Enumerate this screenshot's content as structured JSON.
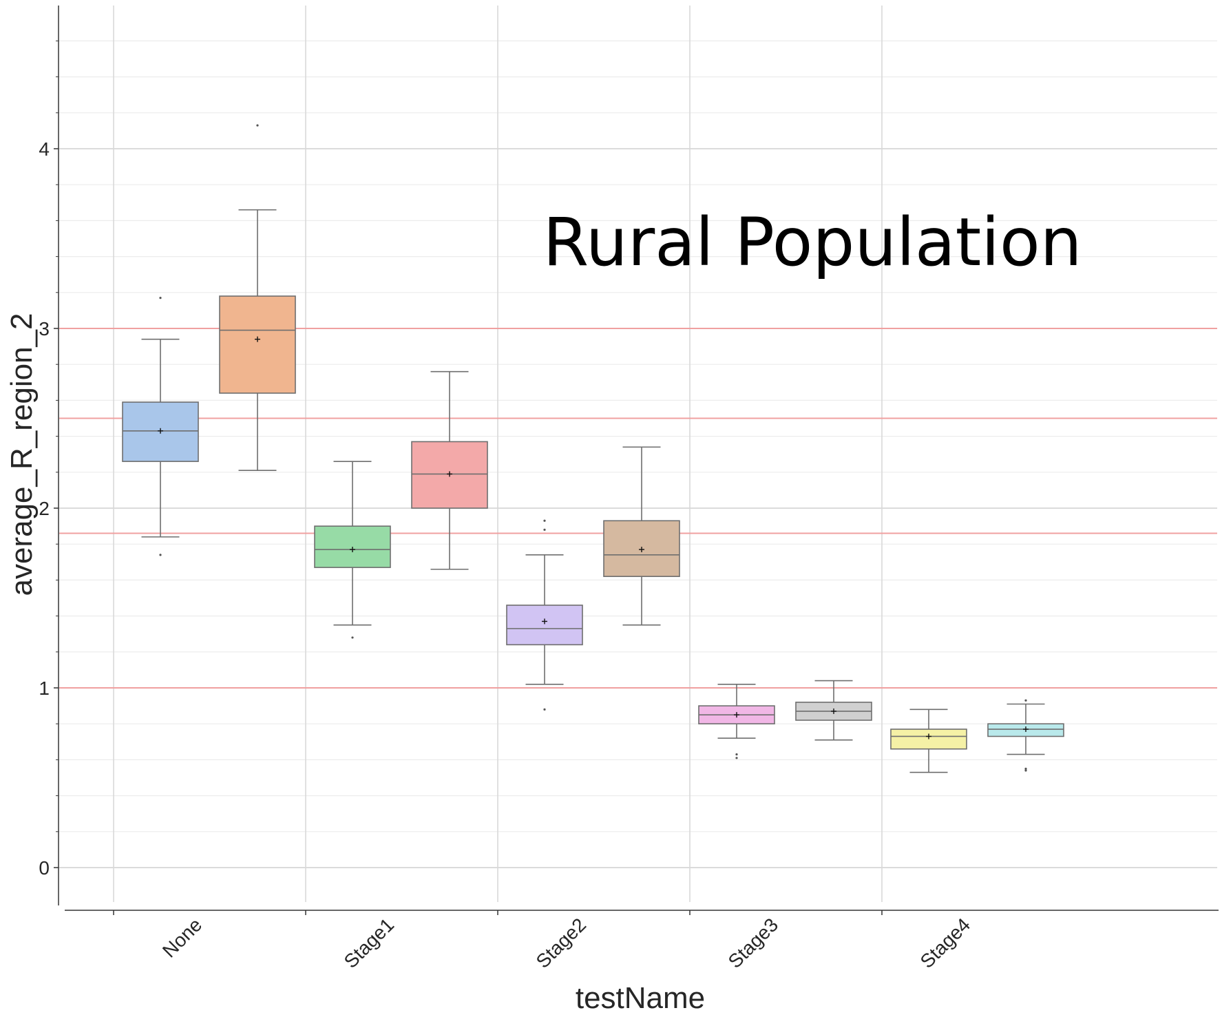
{
  "chart_data": {
    "type": "box",
    "overlay_title": "Rural Population",
    "xlabel": "testName",
    "ylabel": "average_R_region_2",
    "categories": [
      "None",
      "Stage1",
      "Stage2",
      "Stage3",
      "Stage4"
    ],
    "ylim": [
      -0.2,
      4.8
    ],
    "yticks": [
      "0",
      "1",
      "2",
      "3",
      "4"
    ],
    "grid": true,
    "reference_lines": [
      3.0,
      2.5,
      1.86,
      1.0
    ],
    "reference_line_color": "#f0a0a0",
    "boxes": [
      {
        "category": "None",
        "slot": 0,
        "color": "#a9c6ea",
        "whisker_low": 1.84,
        "q1": 2.26,
        "median": 2.43,
        "q3": 2.59,
        "whisker_high": 2.94,
        "mean": 2.43,
        "outliers": [
          1.74,
          3.17
        ]
      },
      {
        "category": "None",
        "slot": 1,
        "color": "#f0b58f",
        "whisker_low": 2.21,
        "q1": 2.64,
        "median": 2.99,
        "q3": 3.18,
        "whisker_high": 3.66,
        "mean": 2.94,
        "outliers": [
          4.13
        ]
      },
      {
        "category": "Stage1",
        "slot": 0,
        "color": "#97dba6",
        "whisker_low": 1.35,
        "q1": 1.67,
        "median": 1.77,
        "q3": 1.9,
        "whisker_high": 2.26,
        "mean": 1.77,
        "outliers": [
          1.28
        ]
      },
      {
        "category": "Stage1",
        "slot": 1,
        "color": "#f3a9a9",
        "whisker_low": 1.66,
        "q1": 2.0,
        "median": 2.19,
        "q3": 2.37,
        "whisker_high": 2.76,
        "mean": 2.19,
        "outliers": []
      },
      {
        "category": "Stage2",
        "slot": 0,
        "color": "#d1c4f3",
        "whisker_low": 1.02,
        "q1": 1.24,
        "median": 1.33,
        "q3": 1.46,
        "whisker_high": 1.74,
        "mean": 1.37,
        "outliers": [
          0.88,
          1.88,
          1.93
        ]
      },
      {
        "category": "Stage2",
        "slot": 1,
        "color": "#d5b9a0",
        "whisker_low": 1.35,
        "q1": 1.62,
        "median": 1.74,
        "q3": 1.93,
        "whisker_high": 2.34,
        "mean": 1.77,
        "outliers": []
      },
      {
        "category": "Stage3",
        "slot": 0,
        "color": "#f1b7e6",
        "whisker_low": 0.72,
        "q1": 0.8,
        "median": 0.85,
        "q3": 0.9,
        "whisker_high": 1.02,
        "mean": 0.85,
        "outliers": [
          0.61,
          0.63
        ]
      },
      {
        "category": "Stage3",
        "slot": 1,
        "color": "#d0d0d0",
        "whisker_low": 0.71,
        "q1": 0.82,
        "median": 0.87,
        "q3": 0.92,
        "whisker_high": 1.04,
        "mean": 0.87,
        "outliers": []
      },
      {
        "category": "Stage4",
        "slot": 0,
        "color": "#f5f1a6",
        "whisker_low": 0.53,
        "q1": 0.66,
        "median": 0.73,
        "q3": 0.77,
        "whisker_high": 0.88,
        "mean": 0.73,
        "outliers": []
      },
      {
        "category": "Stage4",
        "slot": 1,
        "color": "#b9e9eb",
        "whisker_low": 0.63,
        "q1": 0.73,
        "median": 0.77,
        "q3": 0.8,
        "whisker_high": 0.91,
        "mean": 0.77,
        "outliers": [
          0.54,
          0.55,
          0.93
        ]
      }
    ]
  }
}
